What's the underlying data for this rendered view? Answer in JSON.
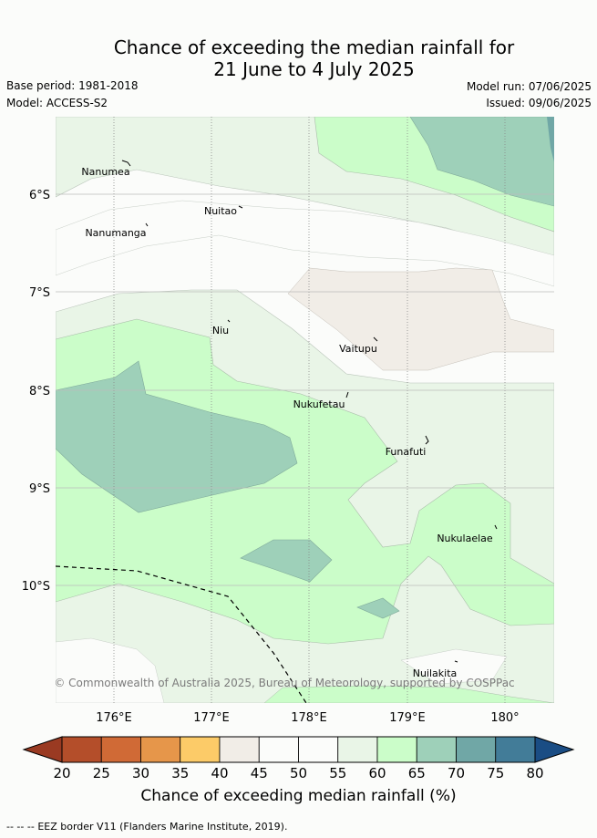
{
  "header": {
    "title_line1": "Chance of exceeding the median rainfall for",
    "title_line2": "21 June to 4 July 2025",
    "base_period": "Base period: 1981-2018",
    "model": "Model: ACCESS-S2",
    "model_run": "Model run: 07/06/2025",
    "issued": "Issued: 09/06/2025"
  },
  "map": {
    "lat_labels": [
      "6°S",
      "7°S",
      "8°S",
      "9°S",
      "10°S"
    ],
    "lon_labels": [
      "176°E",
      "177°E",
      "178°E",
      "179°E",
      "180°"
    ],
    "places": [
      {
        "name": "Nanumea"
      },
      {
        "name": "Nuitao"
      },
      {
        "name": "Nanumanga"
      },
      {
        "name": "Niu"
      },
      {
        "name": "Vaitupu"
      },
      {
        "name": "Nukufetau"
      },
      {
        "name": "Funafuti"
      },
      {
        "name": "Nukulaelae"
      },
      {
        "name": "Nuilakita"
      }
    ],
    "copyright": "© Commonwealth of Australia 2025, Bureau of Meteorology, supported by COSPPac"
  },
  "colorbar": {
    "title": "Chance of exceeding median rainfall (%)",
    "ticks": [
      "20",
      "25",
      "30",
      "35",
      "40",
      "45",
      "50",
      "55",
      "60",
      "65",
      "70",
      "75",
      "80"
    ],
    "under_color": "#9a3a22",
    "over_color": "#1a4d84",
    "colors": [
      "#b44e2a",
      "#d06a36",
      "#e6964a",
      "#fccb68",
      "#f1ede7",
      "#fbfcfa",
      "#fbfcfa",
      "#e9f5e7",
      "#cbfdc9",
      "#9ed0b9",
      "#70a7a6",
      "#427c98"
    ]
  },
  "legend": {
    "eez_symbol": "-- -- --",
    "eez_label": "EEZ border V11 (Flanders Marine Institute, 2019)."
  }
}
